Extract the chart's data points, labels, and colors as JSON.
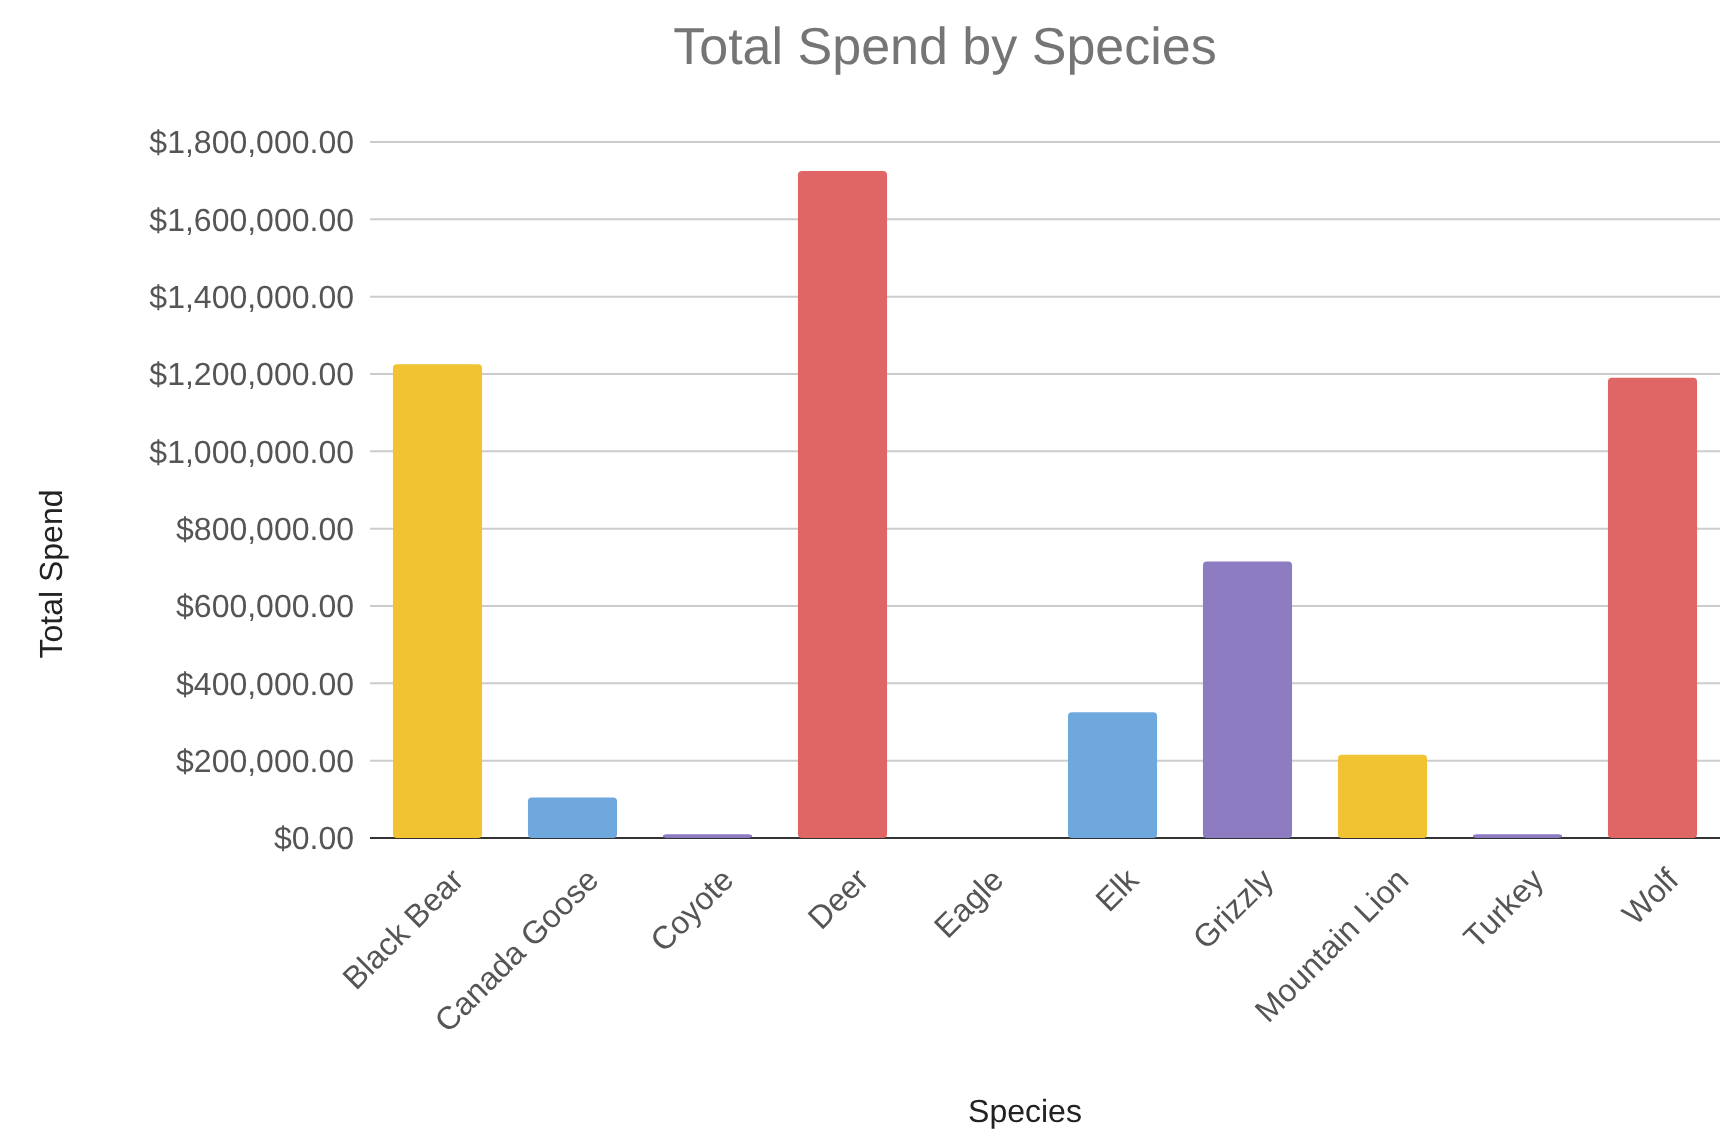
{
  "chart_data": {
    "type": "bar",
    "title": "Total Spend by Species",
    "xlabel": "Species",
    "ylabel": "Total Spend",
    "categories": [
      "Black Bear",
      "Canada Goose",
      "Coyote",
      "Deer",
      "Eagle",
      "Elk",
      "Grizzly",
      "Mountain Lion",
      "Turkey",
      "Wolf"
    ],
    "values": [
      1225000,
      105000,
      10000,
      1725000,
      0,
      325000,
      715000,
      215000,
      10000,
      1190000
    ],
    "colors": [
      "#f1c232",
      "#6fa8dc",
      "#8e7cc3",
      "#e06666",
      "#f1c232",
      "#6fa8dc",
      "#8e7cc3",
      "#f1c232",
      "#8e7cc3",
      "#e06666"
    ],
    "ylim": [
      0,
      1800000
    ],
    "yticks": [
      {
        "value": 0,
        "label": "$0.00"
      },
      {
        "value": 200000,
        "label": "$200,000.00"
      },
      {
        "value": 400000,
        "label": "$400,000.00"
      },
      {
        "value": 600000,
        "label": "$600,000.00"
      },
      {
        "value": 800000,
        "label": "$800,000.00"
      },
      {
        "value": 1000000,
        "label": "$1,000,000.00"
      },
      {
        "value": 1200000,
        "label": "$1,200,000.00"
      },
      {
        "value": 1400000,
        "label": "$1,400,000.00"
      },
      {
        "value": 1600000,
        "label": "$1,600,000.00"
      },
      {
        "value": 1800000,
        "label": "$1,800,000.00"
      }
    ],
    "grid": "y"
  }
}
